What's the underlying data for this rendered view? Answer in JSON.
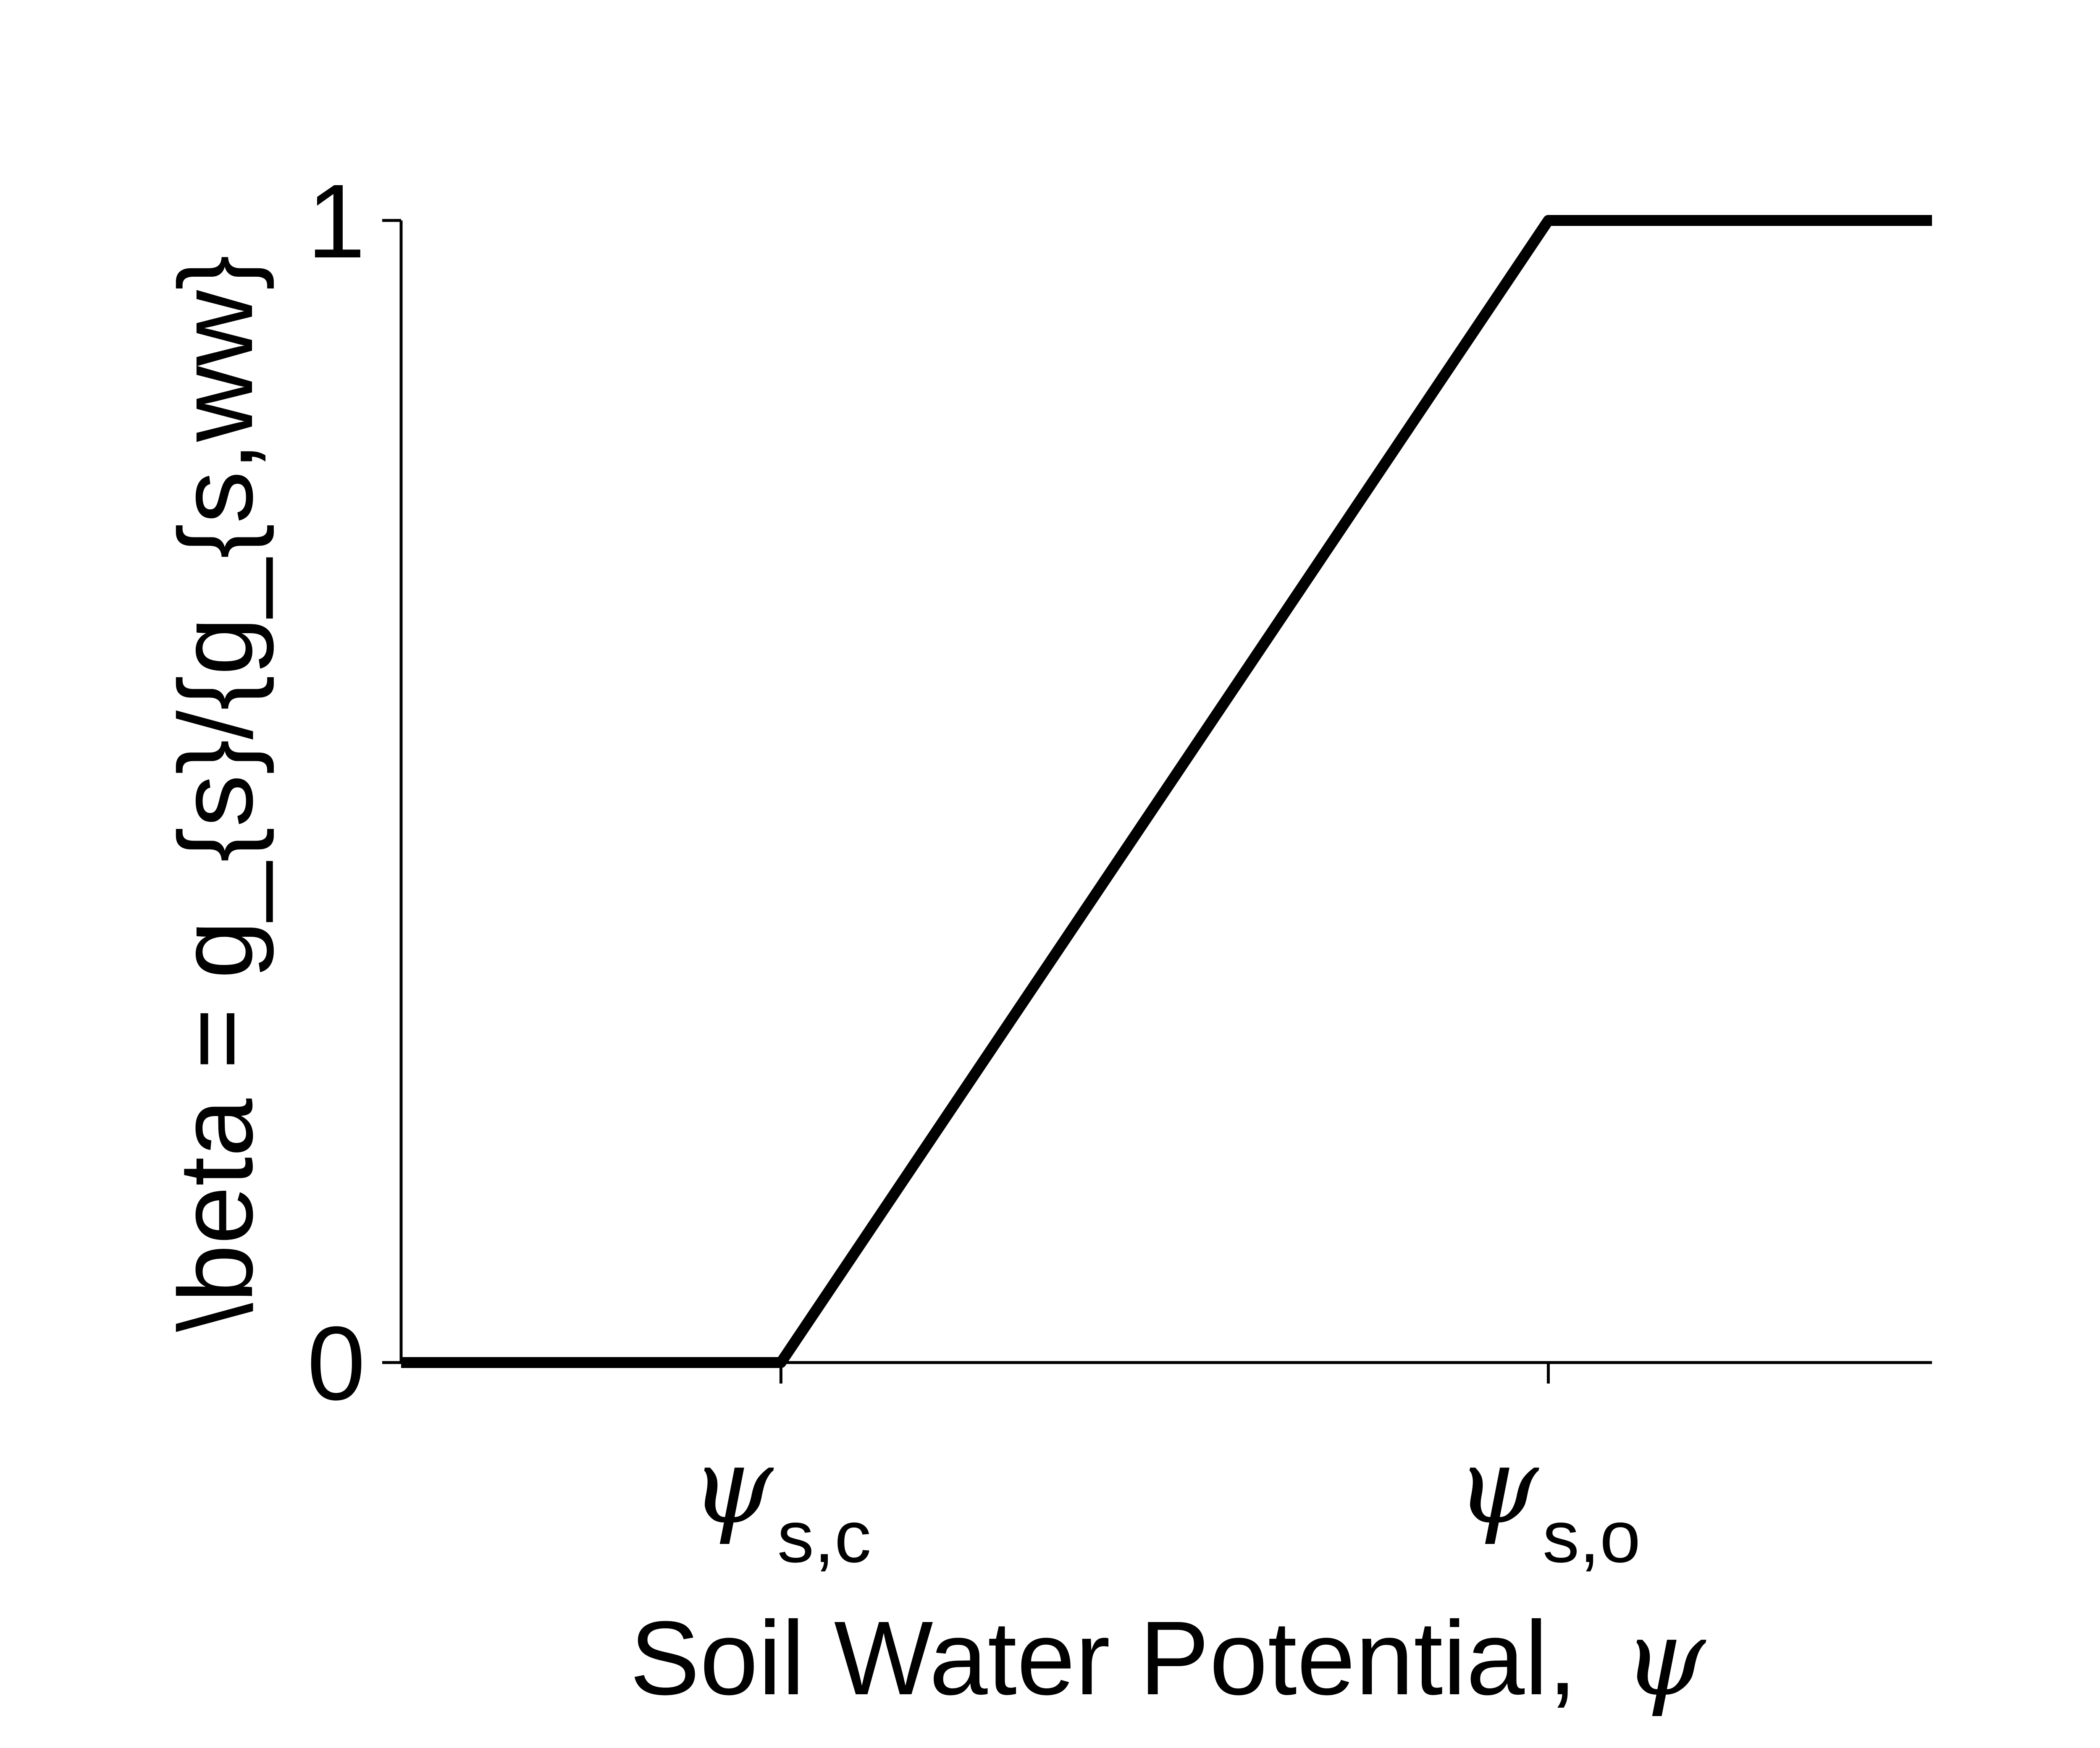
{
  "chart_data": {
    "type": "line",
    "title": "",
    "xlabel": "Soil Water Potential,",
    "xlabel_symbol": "ψ",
    "ylabel": "\\beta = g_{s}/{g_{s,ww}",
    "x_ticks": [
      {
        "symbol": "ψ",
        "subscript": "s,c",
        "value": 0
      },
      {
        "symbol": "ψ",
        "subscript": "s,o",
        "value": 1
      }
    ],
    "y_ticks": [
      0,
      1
    ],
    "xlim": [
      -0.495,
      1.5
    ],
    "ylim": [
      0,
      1
    ],
    "series": [
      {
        "x": [
          -0.495,
          0,
          1,
          1.5
        ],
        "y": [
          0,
          0,
          1,
          1
        ],
        "color": "#000000"
      }
    ],
    "grid": false,
    "legend": "none"
  }
}
